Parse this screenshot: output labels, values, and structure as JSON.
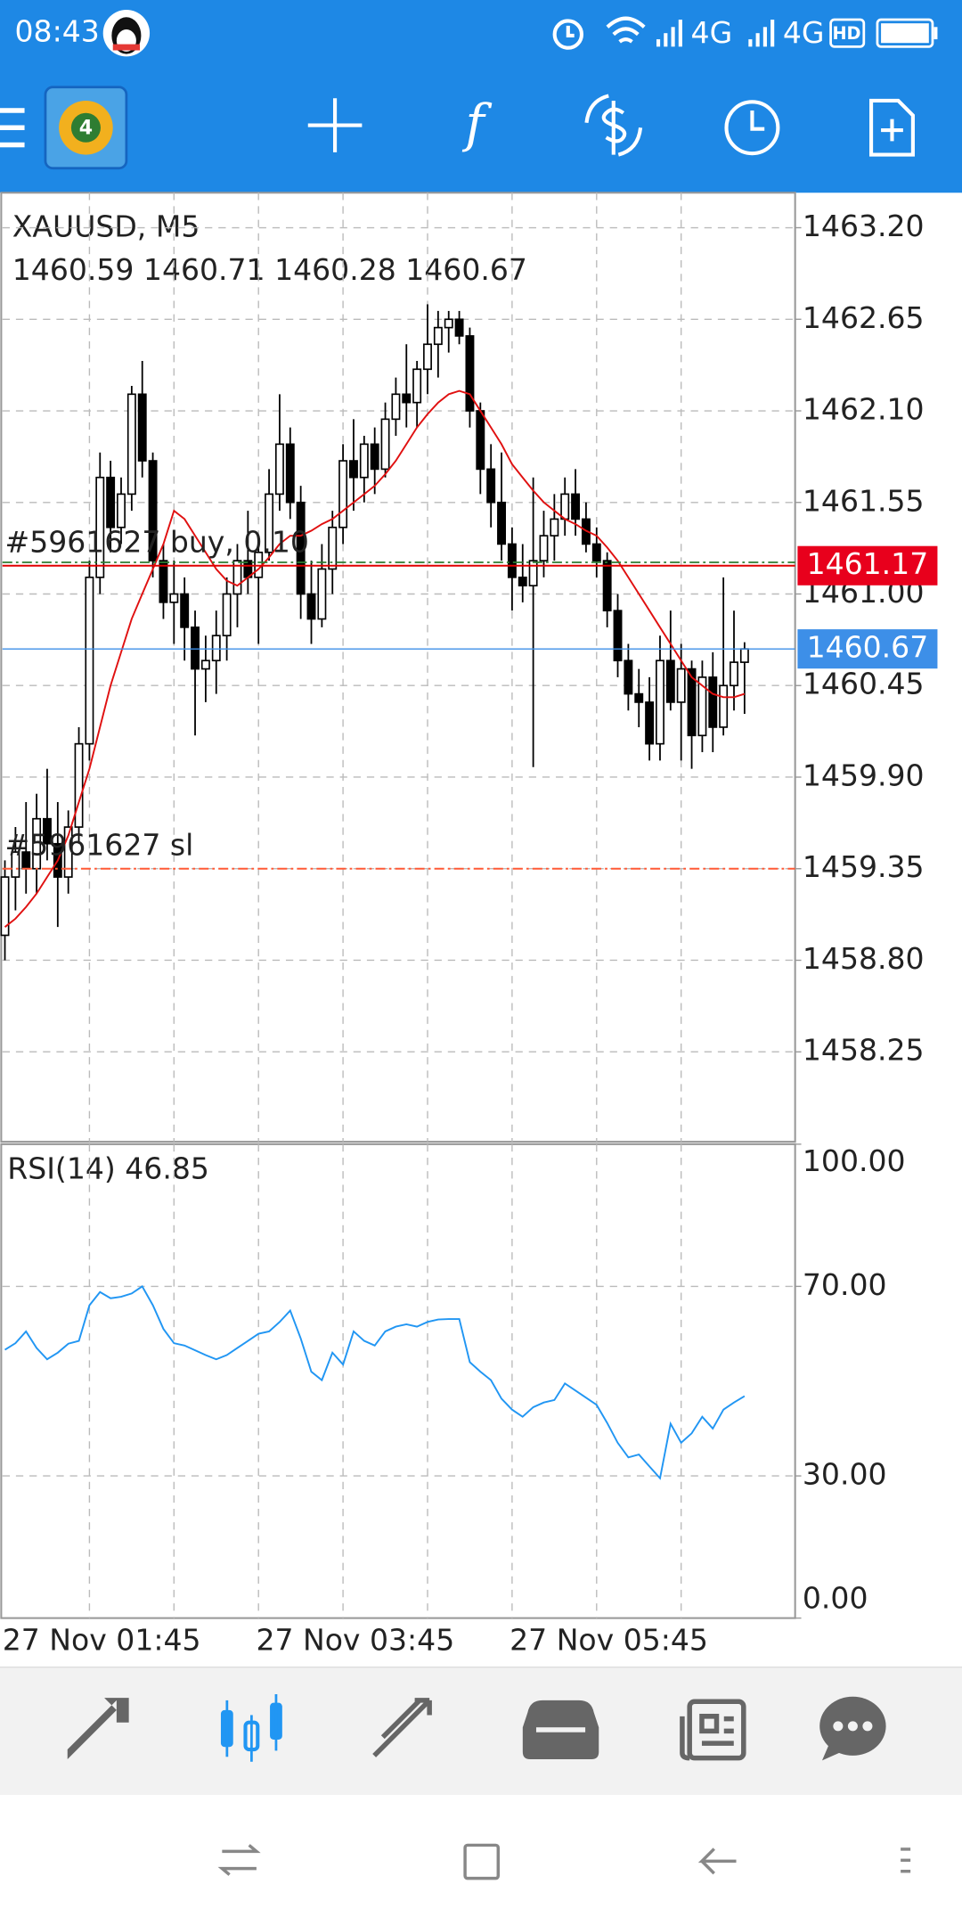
{
  "status_bar": {
    "time": "08:43",
    "network_1": "4G",
    "network_2": "4G",
    "hd": "HD"
  },
  "chart_data": {
    "type": "candlestick",
    "title": "XAUUSD, M5",
    "ohlc": "1460.59 1460.71 1460.28 1460.67",
    "categories": [
      "27 Nov 01:45",
      null,
      null,
      null,
      null,
      null,
      null,
      null,
      null,
      null,
      null,
      null,
      null,
      null,
      null,
      null,
      null,
      null,
      null,
      null,
      null,
      null,
      null,
      null,
      "27 Nov 03:45",
      null,
      null,
      null,
      null,
      null,
      null,
      null,
      null,
      null,
      null,
      null,
      null,
      null,
      null,
      null,
      null,
      null,
      null,
      null,
      null,
      null,
      null,
      null,
      "27 Nov 05:45",
      null,
      null,
      null,
      null,
      null,
      null,
      null,
      null,
      null,
      null,
      null,
      null,
      null,
      null,
      null,
      null,
      null,
      null,
      null,
      null,
      null,
      null,
      null
    ],
    "candles": [
      [
        1458.95,
        1459.4,
        1458.8,
        1459.3
      ],
      [
        1459.3,
        1459.6,
        1459.1,
        1459.45
      ],
      [
        1459.45,
        1459.75,
        1459.2,
        1459.35
      ],
      [
        1459.35,
        1459.8,
        1459.2,
        1459.65
      ],
      [
        1459.65,
        1459.95,
        1459.4,
        1459.5
      ],
      [
        1459.5,
        1459.75,
        1459.0,
        1459.3
      ],
      [
        1459.3,
        1459.7,
        1459.2,
        1459.6
      ],
      [
        1459.6,
        1460.2,
        1459.5,
        1460.1
      ],
      [
        1460.1,
        1461.2,
        1460.0,
        1461.1
      ],
      [
        1461.1,
        1461.85,
        1461.0,
        1461.7
      ],
      [
        1461.7,
        1461.8,
        1461.25,
        1461.4
      ],
      [
        1461.4,
        1461.7,
        1461.3,
        1461.6
      ],
      [
        1461.6,
        1462.25,
        1461.5,
        1462.2
      ],
      [
        1462.2,
        1462.4,
        1461.7,
        1461.8
      ],
      [
        1461.8,
        1461.85,
        1461.1,
        1461.2
      ],
      [
        1461.2,
        1461.3,
        1460.85,
        1460.95
      ],
      [
        1460.95,
        1461.2,
        1460.7,
        1461.0
      ],
      [
        1461.0,
        1461.1,
        1460.6,
        1460.8
      ],
      [
        1460.8,
        1460.9,
        1460.15,
        1460.55
      ],
      [
        1460.55,
        1460.75,
        1460.35,
        1460.6
      ],
      [
        1460.6,
        1460.9,
        1460.4,
        1460.75
      ],
      [
        1460.75,
        1461.1,
        1460.6,
        1461.0
      ],
      [
        1461.0,
        1461.3,
        1460.8,
        1461.2
      ],
      [
        1461.2,
        1461.5,
        1461.0,
        1461.1
      ],
      [
        1461.1,
        1461.35,
        1460.7,
        1461.25
      ],
      [
        1461.25,
        1461.75,
        1461.2,
        1461.6
      ],
      [
        1461.6,
        1462.2,
        1461.5,
        1461.9
      ],
      [
        1461.9,
        1462.0,
        1461.45,
        1461.55
      ],
      [
        1461.55,
        1461.65,
        1460.85,
        1461.0
      ],
      [
        1461.0,
        1461.2,
        1460.7,
        1460.85
      ],
      [
        1460.85,
        1461.3,
        1460.8,
        1461.15
      ],
      [
        1461.15,
        1461.5,
        1461.0,
        1461.4
      ],
      [
        1461.4,
        1461.9,
        1461.3,
        1461.8
      ],
      [
        1461.8,
        1462.05,
        1461.5,
        1461.7
      ],
      [
        1461.7,
        1461.95,
        1461.55,
        1461.9
      ],
      [
        1461.9,
        1462.0,
        1461.6,
        1461.75
      ],
      [
        1461.75,
        1462.15,
        1461.7,
        1462.05
      ],
      [
        1462.05,
        1462.3,
        1461.95,
        1462.2
      ],
      [
        1462.2,
        1462.5,
        1462.0,
        1462.15
      ],
      [
        1462.15,
        1462.4,
        1462.0,
        1462.35
      ],
      [
        1462.35,
        1462.74,
        1462.2,
        1462.5
      ],
      [
        1462.5,
        1462.7,
        1462.3,
        1462.6
      ],
      [
        1462.6,
        1462.7,
        1462.45,
        1462.65
      ],
      [
        1462.65,
        1462.7,
        1462.5,
        1462.55
      ],
      [
        1462.55,
        1462.6,
        1462.0,
        1462.1
      ],
      [
        1462.1,
        1462.15,
        1461.6,
        1461.75
      ],
      [
        1461.75,
        1461.9,
        1461.4,
        1461.55
      ],
      [
        1461.55,
        1461.85,
        1461.2,
        1461.3
      ],
      [
        1461.3,
        1461.4,
        1460.9,
        1461.1
      ],
      [
        1461.1,
        1461.3,
        1460.95,
        1461.05
      ],
      [
        1461.05,
        1461.7,
        1459.96,
        1461.2
      ],
      [
        1461.2,
        1461.5,
        1461.1,
        1461.35
      ],
      [
        1461.35,
        1461.6,
        1461.2,
        1461.45
      ],
      [
        1461.45,
        1461.7,
        1461.35,
        1461.6
      ],
      [
        1461.6,
        1461.75,
        1461.35,
        1461.45
      ],
      [
        1461.45,
        1461.55,
        1461.25,
        1461.3
      ],
      [
        1461.3,
        1461.4,
        1461.1,
        1461.2
      ],
      [
        1461.2,
        1461.25,
        1460.8,
        1460.9
      ],
      [
        1460.9,
        1461.0,
        1460.5,
        1460.6
      ],
      [
        1460.6,
        1460.7,
        1460.3,
        1460.4
      ],
      [
        1460.4,
        1460.55,
        1460.2,
        1460.35
      ],
      [
        1460.35,
        1460.5,
        1460.0,
        1460.1
      ],
      [
        1460.1,
        1460.75,
        1460.0,
        1460.6
      ],
      [
        1460.6,
        1460.9,
        1460.3,
        1460.35
      ],
      [
        1460.35,
        1460.7,
        1460.0,
        1460.55
      ],
      [
        1460.55,
        1460.6,
        1459.95,
        1460.15
      ],
      [
        1460.15,
        1460.6,
        1460.05,
        1460.5
      ],
      [
        1460.5,
        1460.65,
        1460.05,
        1460.2
      ],
      [
        1460.2,
        1461.1,
        1460.15,
        1460.45
      ],
      [
        1460.45,
        1460.9,
        1460.3,
        1460.59
      ],
      [
        1460.59,
        1460.71,
        1460.28,
        1460.67
      ]
    ],
    "ma": {
      "color": "#e01010",
      "values": [
        1459.0,
        1459.05,
        1459.12,
        1459.2,
        1459.3,
        1459.4,
        1459.55,
        1459.75,
        1459.95,
        1460.2,
        1460.45,
        1460.65,
        1460.85,
        1461.0,
        1461.15,
        1461.3,
        1461.5,
        1461.45,
        1461.35,
        1461.25,
        1461.15,
        1461.08,
        1461.05,
        1461.1,
        1461.15,
        1461.22,
        1461.3,
        1461.35,
        1461.35,
        1461.38,
        1461.42,
        1461.45,
        1461.5,
        1461.55,
        1461.6,
        1461.65,
        1461.72,
        1461.8,
        1461.9,
        1462.0,
        1462.08,
        1462.15,
        1462.2,
        1462.22,
        1462.2,
        1462.1,
        1462.0,
        1461.9,
        1461.78,
        1461.7,
        1461.62,
        1461.55,
        1461.5,
        1461.45,
        1461.42,
        1461.38,
        1461.35,
        1461.28,
        1461.2,
        1461.1,
        1461.0,
        1460.9,
        1460.8,
        1460.7,
        1460.6,
        1460.5,
        1460.45,
        1460.4,
        1460.38,
        1460.38,
        1460.4
      ]
    },
    "ylim": [
      1457.71,
      1463.41
    ],
    "yticks": [
      {
        "value": 1463.2,
        "label": "1463.20"
      },
      {
        "value": 1462.65,
        "label": "1462.65"
      },
      {
        "value": 1462.1,
        "label": "1462.10"
      },
      {
        "value": 1461.55,
        "label": "1461.55"
      },
      {
        "value": 1461.0,
        "label": "1461.00"
      },
      {
        "value": 1460.45,
        "label": "1460.45"
      },
      {
        "value": 1459.9,
        "label": "1459.90"
      },
      {
        "value": 1459.35,
        "label": "1459.35"
      },
      {
        "value": 1458.8,
        "label": "1458.80"
      },
      {
        "value": 1458.25,
        "label": "1458.25"
      }
    ],
    "grid": true,
    "open_line": {
      "value": 1461.19,
      "color": "#2e7d32"
    },
    "orders": [
      {
        "label": "#5961627 buy, 0.10",
        "value": 1461.17,
        "color": "#e00000",
        "style": "solid",
        "tag_color": "#e8001c"
      },
      {
        "label": "#5961627 sl",
        "value": 1459.35,
        "color": "#ff5a36",
        "style": "dashdot"
      }
    ],
    "bid": {
      "value": 1460.67,
      "color": "#3d8fe8"
    },
    "indicator": {
      "type": "line",
      "title": "RSI(14) 46.85",
      "color": "#2196f3",
      "values": [
        56.6,
        58,
        60.5,
        57,
        54.6,
        56,
        57.9,
        58.5,
        66,
        68.8,
        67.5,
        67.8,
        68.5,
        70,
        66,
        61,
        58,
        57.5,
        56.5,
        55.5,
        54.6,
        55.5,
        57,
        58.5,
        60,
        60.5,
        62.5,
        64.9,
        59,
        52,
        50.2,
        56,
        53.5,
        60.5,
        58.5,
        57.5,
        60.5,
        61.5,
        62,
        61.5,
        62.5,
        63,
        63.1,
        63.1,
        54,
        52,
        50.2,
        46.3,
        44,
        42.5,
        44.5,
        45.5,
        46,
        49.5,
        48,
        46.5,
        45,
        41.2,
        37,
        33.9,
        34.5,
        32,
        29.5,
        41,
        37,
        39,
        42.5,
        40,
        44,
        45.5,
        46.85
      ],
      "ylim": [
        0,
        100
      ],
      "yticks": [
        {
          "value": 100,
          "label": "100.00"
        },
        {
          "value": 70,
          "label": "70.00"
        },
        {
          "value": 30,
          "label": "30.00"
        },
        {
          "value": 0,
          "label": "0.00"
        }
      ]
    }
  }
}
